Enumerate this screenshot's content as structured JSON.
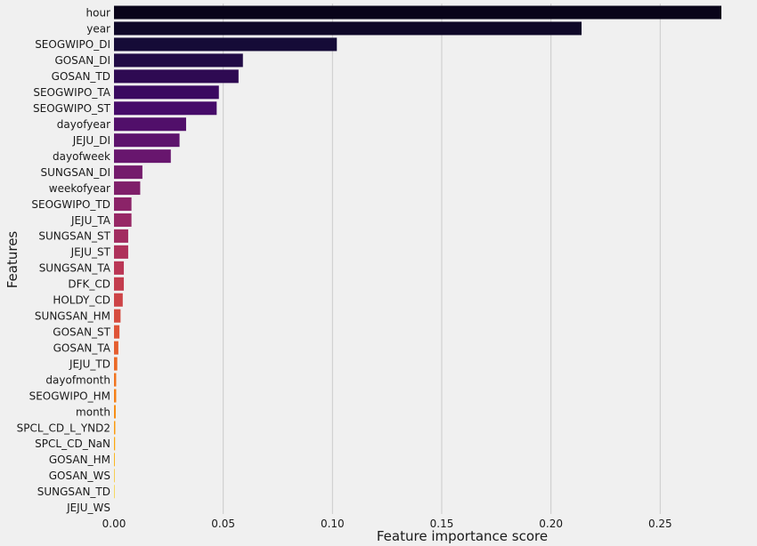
{
  "chart_data": {
    "type": "bar",
    "orientation": "horizontal",
    "xlabel": "Feature importance score",
    "ylabel": "Features",
    "xlim": [
      0,
      0.278
    ],
    "xticks": [
      0.0,
      0.05,
      0.1,
      0.15,
      0.2,
      0.25
    ],
    "xtick_labels": [
      "0.00",
      "0.05",
      "0.10",
      "0.15",
      "0.20",
      "0.25"
    ],
    "grid": "vertical",
    "colormap": "inferno (dark to light)",
    "categories": [
      "hour",
      "year",
      "SEOGWIPO_DI",
      "GOSAN_DI",
      "GOSAN_TD",
      "SEOGWIPO_TA",
      "SEOGWIPO_ST",
      "dayofyear",
      "JEJU_DI",
      "dayofweek",
      "SUNGSAN_DI",
      "weekofyear",
      "SEOGWIPO_TD",
      "JEJU_TA",
      "SUNGSAN_ST",
      "JEJU_ST",
      "SUNGSAN_TA",
      "DFK_CD",
      "HOLDY_CD",
      "SUNGSAN_HM",
      "GOSAN_ST",
      "GOSAN_TA",
      "JEJU_TD",
      "dayofmonth",
      "SEOGWIPO_HM",
      "month",
      "SPCL_CD_L_YND2",
      "SPCL_CD_NaN",
      "GOSAN_HM",
      "GOSAN_WS",
      "SUNGSAN_TD",
      "JEJU_WS"
    ],
    "values": [
      0.278,
      0.214,
      0.102,
      0.059,
      0.057,
      0.048,
      0.047,
      0.033,
      0.03,
      0.026,
      0.013,
      0.012,
      0.008,
      0.008,
      0.0065,
      0.0065,
      0.0045,
      0.0045,
      0.004,
      0.003,
      0.0025,
      0.002,
      0.0015,
      0.001,
      0.001,
      0.0008,
      0.0006,
      0.0005,
      0.0004,
      0.0003,
      0.0002,
      0.0
    ]
  }
}
